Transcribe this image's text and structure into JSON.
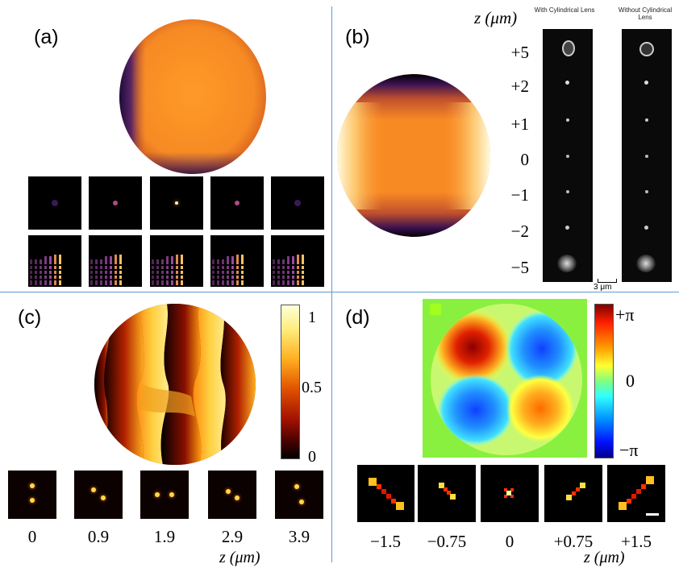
{
  "panels": {
    "a": {
      "label": "(a)"
    },
    "b": {
      "label": "(b)",
      "z_axis_label": "z (μm)",
      "z_ticks": [
        "+5",
        "+2",
        "+1",
        "0",
        "−1",
        "−2",
        "−5"
      ],
      "col1_label": "With Cylindrical Lens",
      "col2_label": "Without Cylindrical Lens",
      "scalebar_label": "3 μm"
    },
    "c": {
      "label": "(c)",
      "colorbar_ticks": [
        "1",
        "0.5",
        "0"
      ],
      "captions": [
        "0",
        "0.9",
        "1.9",
        "2.9",
        "3.9"
      ],
      "z_axis_label": "z (μm)"
    },
    "d": {
      "label": "(d)",
      "colorbar_ticks": [
        "+π",
        "0",
        "−π"
      ],
      "captions": [
        "−1.5",
        "−0.75",
        "0",
        "+0.75",
        "+1.5"
      ],
      "z_axis_label": "z (μm)"
    }
  }
}
